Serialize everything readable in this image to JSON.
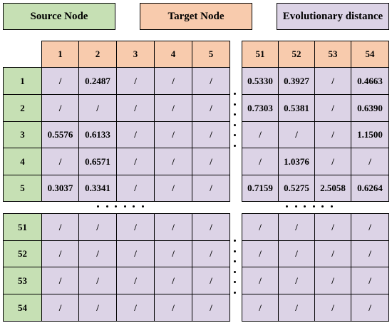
{
  "legend": {
    "source": "Source Node",
    "target": "Target Node",
    "distance": "Evolutionary distance"
  },
  "colors": {
    "source": "#c6e0b4",
    "target": "#f8cbad",
    "distance": "#dcd3e6"
  },
  "columns_left": [
    "1",
    "2",
    "3",
    "4",
    "5"
  ],
  "columns_right": [
    "51",
    "52",
    "53",
    "54"
  ],
  "rows_top": [
    {
      "label": "1",
      "left": [
        "/",
        "0.2487",
        "/",
        "/",
        "/"
      ],
      "right": [
        "0.5330",
        "0.3927",
        "/",
        "0.4663"
      ]
    },
    {
      "label": "2",
      "left": [
        "/",
        "/",
        "/",
        "/",
        "/"
      ],
      "right": [
        "0.7303",
        "0.5381",
        "/",
        "0.6390"
      ]
    },
    {
      "label": "3",
      "left": [
        "0.5576",
        "0.6133",
        "/",
        "/",
        "/"
      ],
      "right": [
        "/",
        "/",
        "/",
        "1.1500"
      ]
    },
    {
      "label": "4",
      "left": [
        "/",
        "0.6571",
        "/",
        "/",
        "/"
      ],
      "right": [
        "/",
        "1.0376",
        "/",
        "/"
      ]
    },
    {
      "label": "5",
      "left": [
        "0.3037",
        "0.3341",
        "/",
        "/",
        "/"
      ],
      "right": [
        "0.7159",
        "0.5275",
        "2.5058",
        "0.6264"
      ]
    }
  ],
  "rows_bottom": [
    {
      "label": "51",
      "left": [
        "/",
        "/",
        "/",
        "/",
        "/"
      ],
      "right": [
        "/",
        "/",
        "/",
        "/"
      ]
    },
    {
      "label": "52",
      "left": [
        "/",
        "/",
        "/",
        "/",
        "/"
      ],
      "right": [
        "/",
        "/",
        "/",
        "/"
      ]
    },
    {
      "label": "53",
      "left": [
        "/",
        "/",
        "/",
        "/",
        "/"
      ],
      "right": [
        "/",
        "/",
        "/",
        "/"
      ]
    },
    {
      "label": "54",
      "left": [
        "/",
        "/",
        "/",
        "/",
        "/"
      ],
      "right": [
        "/",
        "/",
        "/",
        "/"
      ]
    }
  ]
}
